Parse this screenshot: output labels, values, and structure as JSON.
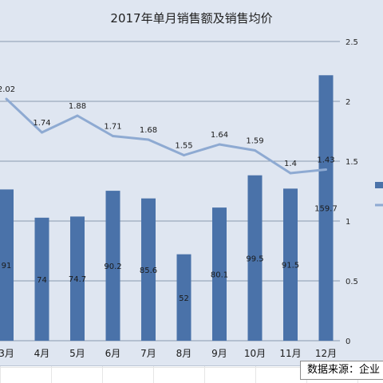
{
  "title": "2017年单月销售额及销售均价",
  "source_note": "数据来源：企业",
  "colors": {
    "bar": "#4a72a9",
    "line": "#8eaad2",
    "grid": "#8a9aae",
    "chart_bg": "#dfe6f1"
  },
  "chart_data": {
    "type": "bar",
    "title": "2017年单月销售额及销售均价",
    "categories": [
      "3月",
      "4月",
      "5月",
      "6月",
      "7月",
      "8月",
      "9月",
      "10月",
      "11月",
      "12月"
    ],
    "series": [
      {
        "values": [
          91,
          74,
          74.7,
          90.2,
          85.6,
          52,
          80.1,
          99.5,
          91.5,
          159.7
        ],
        "labels": [
          "91",
          "74",
          "74.7",
          "90.2",
          "85.6",
          "52",
          "80.1",
          "99.5",
          "91.5",
          "159.7"
        ]
      },
      {
        "type": "line",
        "axis": "right",
        "values": [
          2.02,
          1.74,
          1.88,
          1.71,
          1.68,
          1.55,
          1.64,
          1.59,
          1.4,
          1.43
        ],
        "labels": [
          "2.02",
          "1.74",
          "1.88",
          "1.71",
          "1.68",
          "1.55",
          "1.64",
          "1.59",
          "1.4",
          "1.43"
        ]
      }
    ],
    "right_axis": {
      "ticks": [
        "0",
        "0.5",
        "1",
        "1.5",
        "2",
        "2.5"
      ],
      "range": [
        0,
        2.5
      ]
    },
    "left_axis_range": [
      0,
      180
    ],
    "grid": true,
    "legend": "right"
  }
}
